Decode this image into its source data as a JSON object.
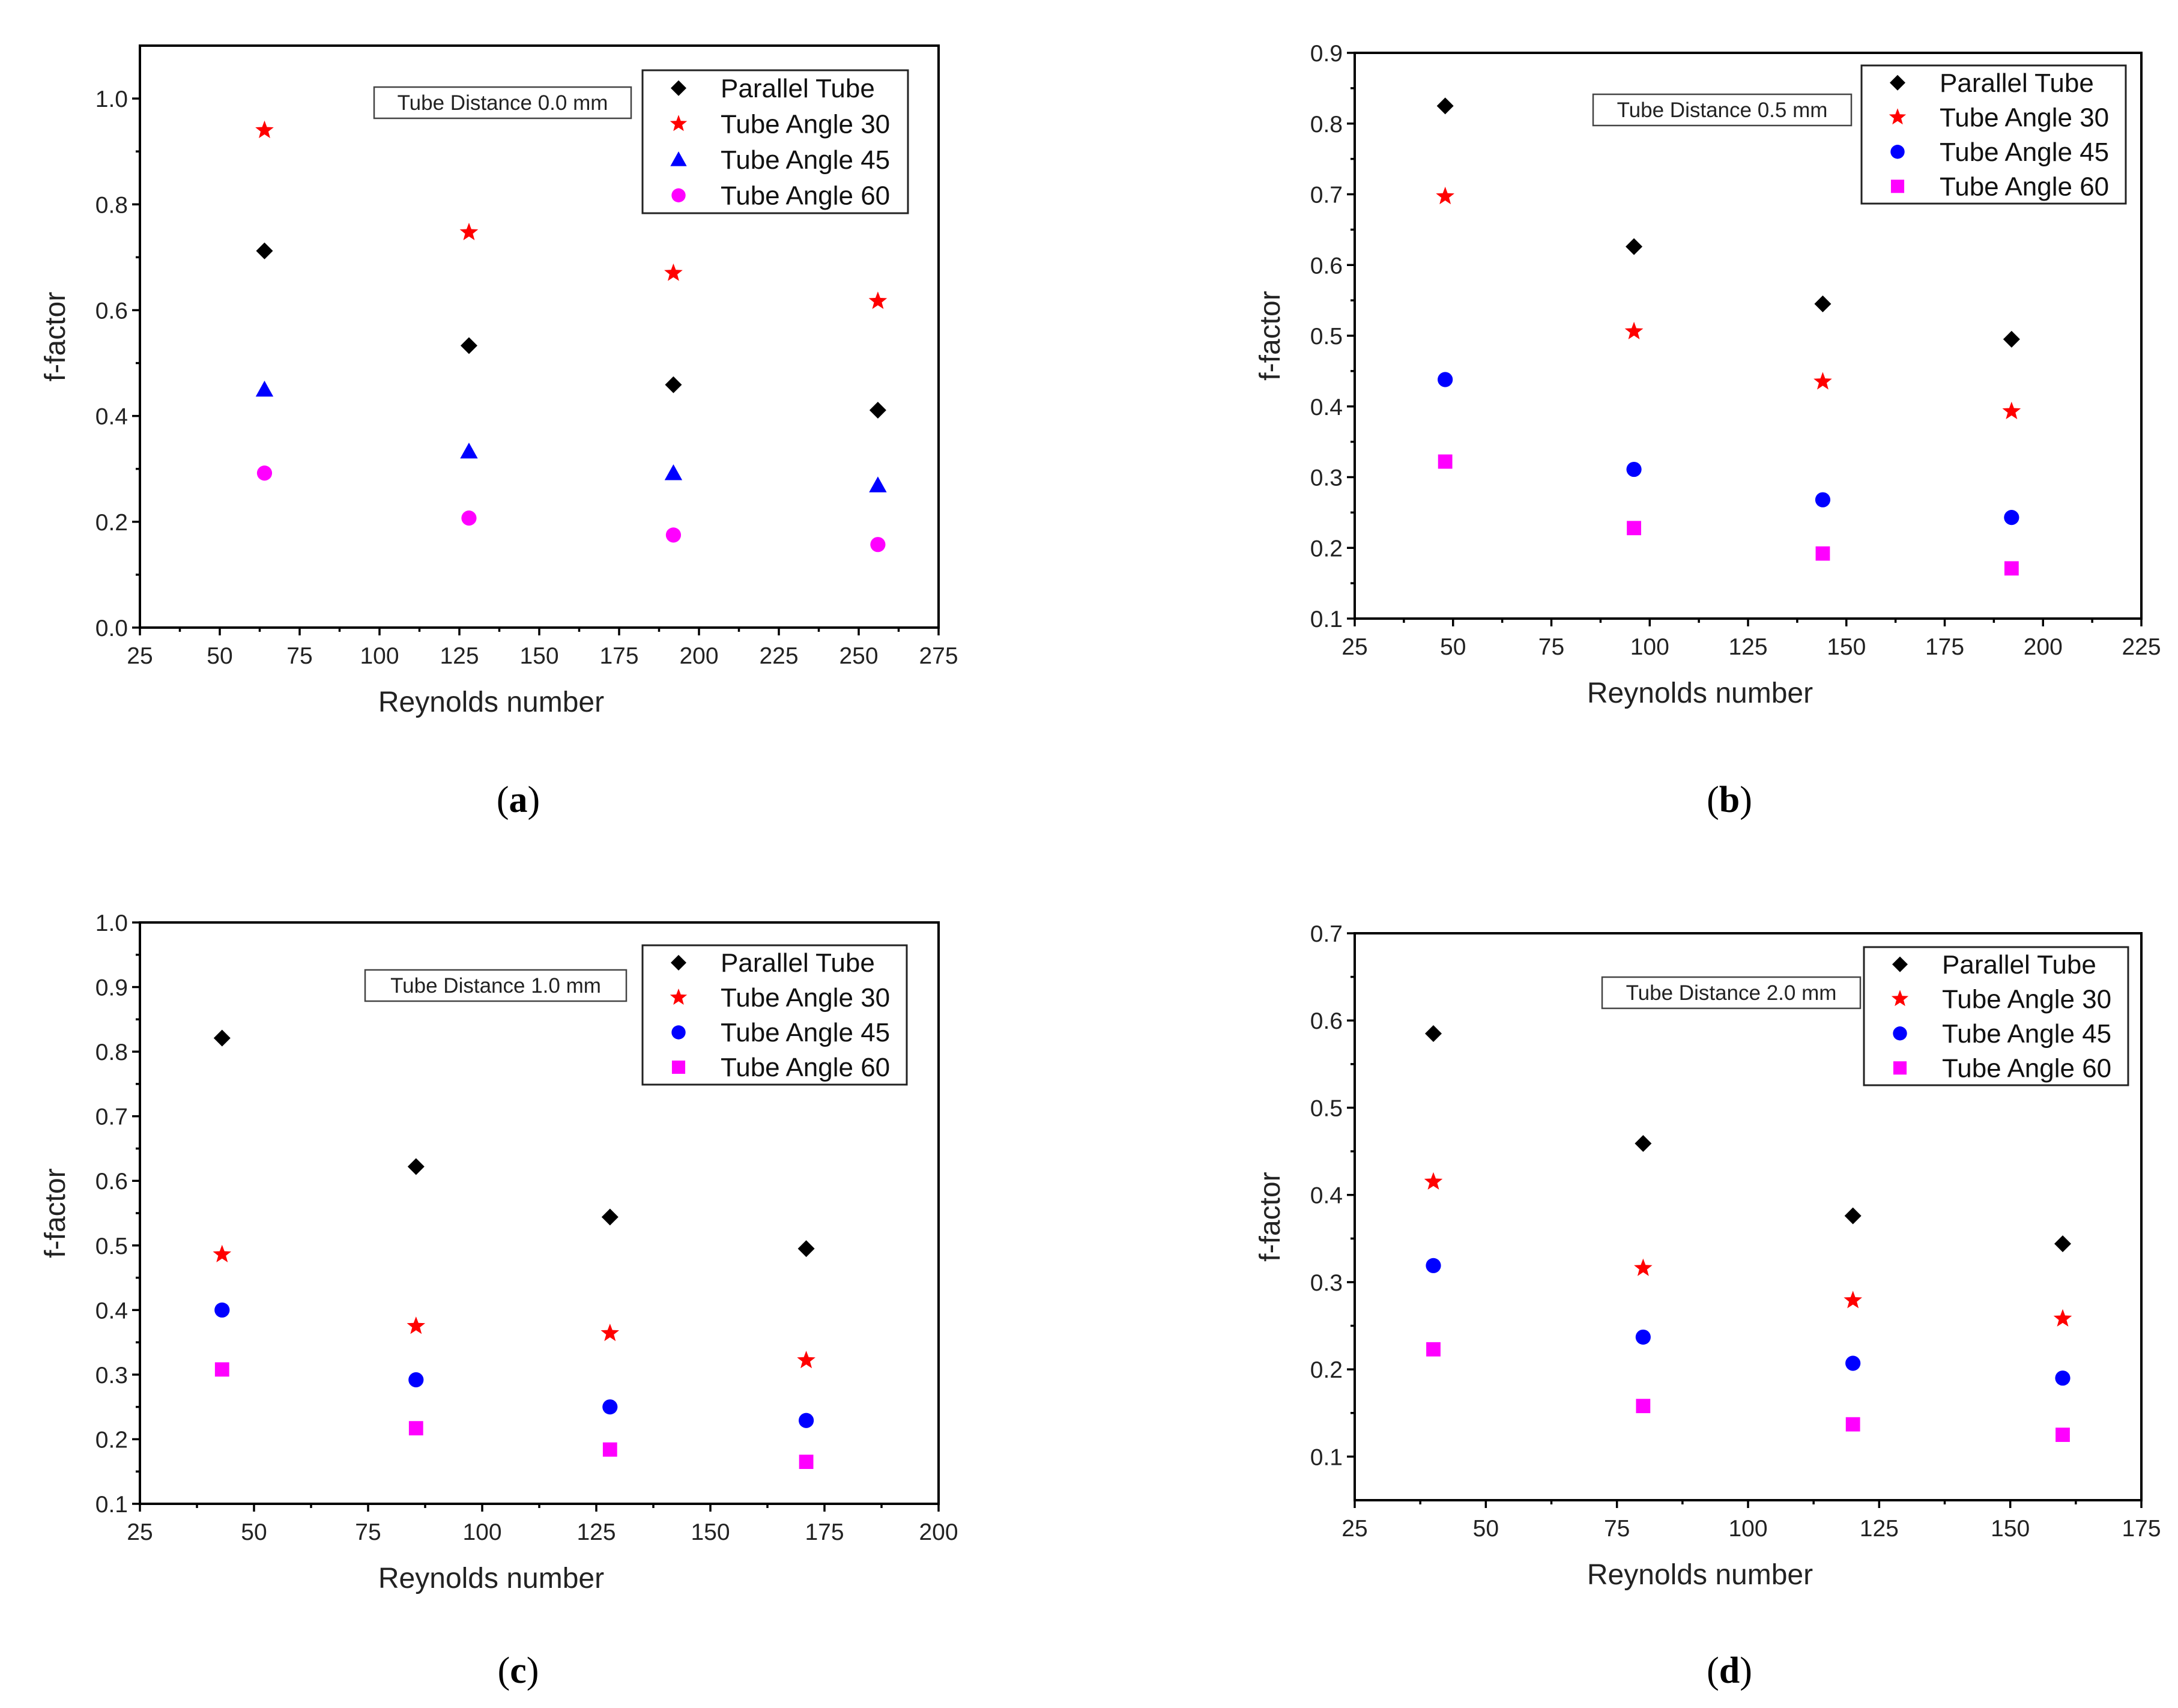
{
  "chart_data": [
    {
      "type": "scatter",
      "panel": "a",
      "annotation": "Tube Distance 0.0 mm",
      "xlabel": "Reynolds number",
      "ylabel": "f-factor",
      "xlim": [
        25,
        275
      ],
      "ylim": [
        0.0,
        1.1
      ],
      "xticks": [
        25,
        50,
        75,
        100,
        125,
        150,
        175,
        200,
        225,
        250,
        275
      ],
      "yticks": [
        0.0,
        0.2,
        0.4,
        0.6,
        0.8,
        1.0
      ],
      "ytick_labels": [
        "0.0",
        "0.2",
        "0.4",
        "0.6",
        "0.8",
        "1.0"
      ],
      "legend_position": "top-right",
      "x": [
        64,
        128,
        192,
        256
      ],
      "series": [
        {
          "name": "Parallel Tube",
          "marker": "diamond",
          "color": "#000000",
          "values": [
            0.712,
            0.533,
            0.459,
            0.411
          ]
        },
        {
          "name": "Tube Angle 30",
          "marker": "star",
          "color": "#ff0000",
          "values": [
            0.94,
            0.747,
            0.67,
            0.617
          ]
        },
        {
          "name": "Tube Angle 45",
          "marker": "triangle",
          "color": "#0000ff",
          "values": [
            0.45,
            0.333,
            0.292,
            0.269
          ]
        },
        {
          "name": "Tube Angle 60",
          "marker": "circle",
          "color": "#ff00ff",
          "values": [
            0.292,
            0.207,
            0.175,
            0.157
          ]
        }
      ]
    },
    {
      "type": "scatter",
      "panel": "b",
      "annotation": "Tube Distance 0.5 mm",
      "xlabel": "Reynolds number",
      "ylabel": "f-factor",
      "xlim": [
        25,
        225
      ],
      "ylim": [
        0.1,
        0.9
      ],
      "xticks": [
        25,
        50,
        75,
        100,
        125,
        150,
        175,
        200,
        225
      ],
      "yticks": [
        0.1,
        0.2,
        0.3,
        0.4,
        0.5,
        0.6,
        0.7,
        0.8,
        0.9
      ],
      "ytick_labels": [
        "0.1",
        "0.2",
        "0.3",
        "0.4",
        "0.5",
        "0.6",
        "0.7",
        "0.8",
        "0.9"
      ],
      "legend_position": "top-right",
      "x": [
        48,
        96,
        144,
        192
      ],
      "series": [
        {
          "name": "Parallel Tube",
          "marker": "diamond",
          "color": "#000000",
          "values": [
            0.825,
            0.626,
            0.545,
            0.495
          ]
        },
        {
          "name": "Tube Angle 30",
          "marker": "star",
          "color": "#ff0000",
          "values": [
            0.697,
            0.506,
            0.435,
            0.393
          ]
        },
        {
          "name": "Tube Angle 45",
          "marker": "circle",
          "color": "#0000ff",
          "values": [
            0.438,
            0.311,
            0.268,
            0.243
          ]
        },
        {
          "name": "Tube Angle 60",
          "marker": "square",
          "color": "#ff00ff",
          "values": [
            0.322,
            0.228,
            0.192,
            0.171
          ]
        }
      ]
    },
    {
      "type": "scatter",
      "panel": "c",
      "annotation": "Tube Distance 1.0 mm",
      "xlabel": "Reynolds number",
      "ylabel": "f-factor",
      "xlim": [
        25,
        200
      ],
      "ylim": [
        0.1,
        1.0
      ],
      "xticks": [
        25,
        50,
        75,
        100,
        125,
        150,
        175,
        200
      ],
      "yticks": [
        0.1,
        0.2,
        0.3,
        0.4,
        0.5,
        0.6,
        0.7,
        0.8,
        0.9,
        1.0
      ],
      "ytick_labels": [
        "0.1",
        "0.2",
        "0.3",
        "0.4",
        "0.5",
        "0.6",
        "0.7",
        "0.8",
        "0.9",
        "1.0"
      ],
      "legend_position": "top-right",
      "x": [
        43,
        85.5,
        128,
        171
      ],
      "series": [
        {
          "name": "Parallel Tube",
          "marker": "diamond",
          "color": "#000000",
          "values": [
            0.821,
            0.622,
            0.544,
            0.495
          ]
        },
        {
          "name": "Tube Angle 30",
          "marker": "star",
          "color": "#ff0000",
          "values": [
            0.486,
            0.375,
            0.364,
            0.322
          ]
        },
        {
          "name": "Tube Angle 45",
          "marker": "circle",
          "color": "#0000ff",
          "values": [
            0.4,
            0.292,
            0.25,
            0.229
          ]
        },
        {
          "name": "Tube Angle 60",
          "marker": "square",
          "color": "#ff00ff",
          "values": [
            0.308,
            0.217,
            0.184,
            0.165
          ]
        }
      ]
    },
    {
      "type": "scatter",
      "panel": "d",
      "annotation": "Tube Distance 2.0 mm",
      "xlabel": "Reynolds number",
      "ylabel": "f-factor",
      "xlim": [
        25,
        175
      ],
      "ylim": [
        0.05,
        0.7
      ],
      "xticks": [
        25,
        50,
        75,
        100,
        125,
        150,
        175
      ],
      "yticks": [
        0.1,
        0.2,
        0.3,
        0.4,
        0.5,
        0.6,
        0.7
      ],
      "ytick_labels": [
        "0.1",
        "0.2",
        "0.3",
        "0.4",
        "0.5",
        "0.6",
        "0.7"
      ],
      "legend_position": "top-right",
      "x": [
        40,
        80,
        120,
        160
      ],
      "series": [
        {
          "name": "Parallel Tube",
          "marker": "diamond",
          "color": "#000000",
          "values": [
            0.585,
            0.459,
            0.376,
            0.344
          ]
        },
        {
          "name": "Tube Angle 30",
          "marker": "star",
          "color": "#ff0000",
          "values": [
            0.415,
            0.316,
            0.279,
            0.258
          ]
        },
        {
          "name": "Tube Angle 45",
          "marker": "circle",
          "color": "#0000ff",
          "values": [
            0.319,
            0.237,
            0.207,
            0.19
          ]
        },
        {
          "name": "Tube Angle 60",
          "marker": "square",
          "color": "#ff00ff",
          "values": [
            0.223,
            0.158,
            0.137,
            0.125
          ]
        }
      ]
    }
  ]
}
